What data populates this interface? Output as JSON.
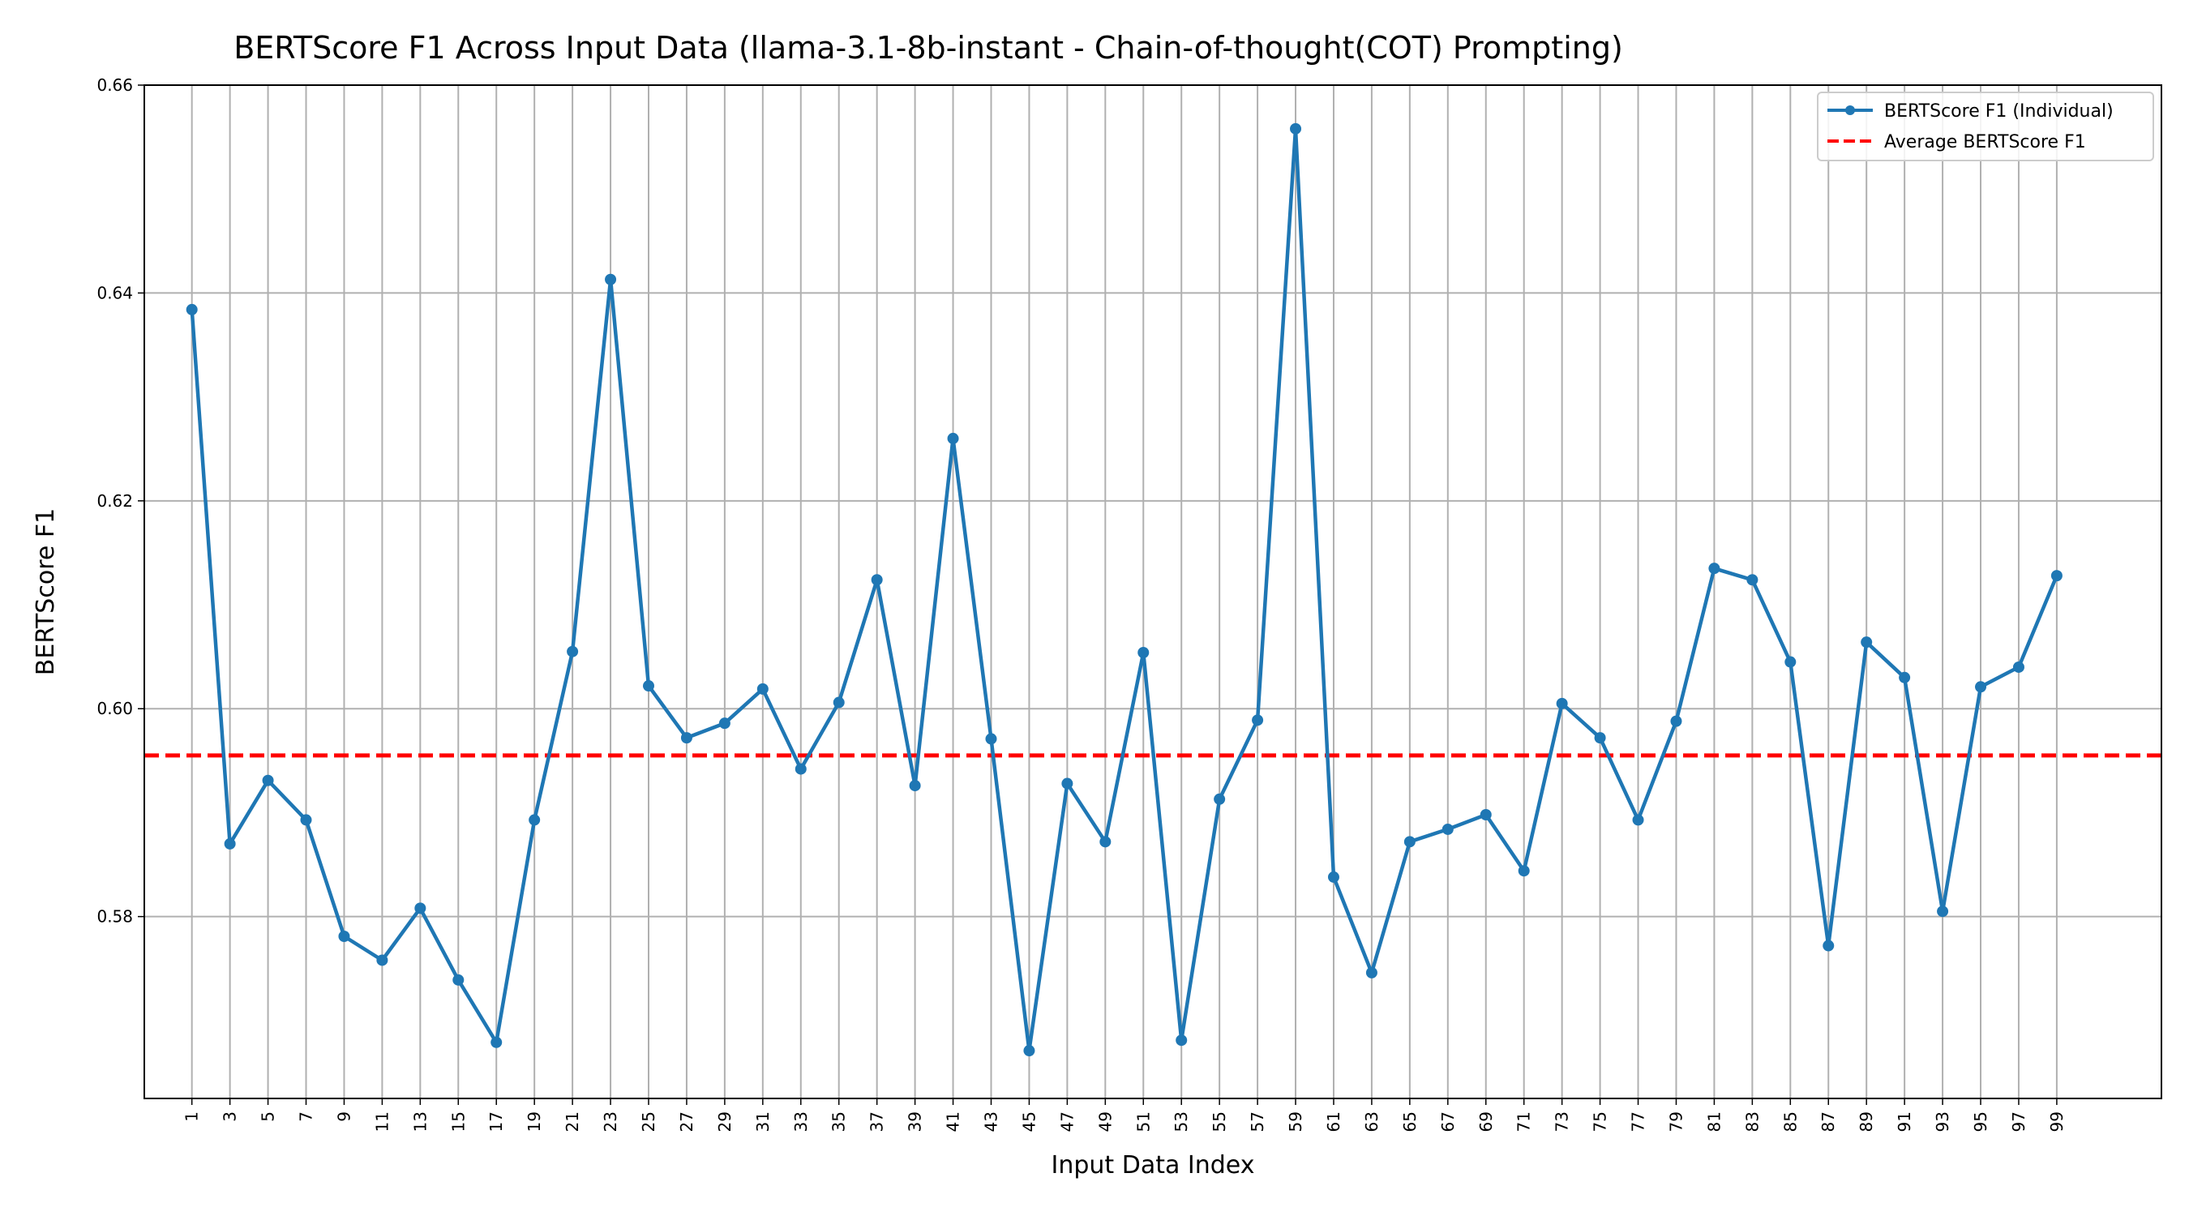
{
  "chart_data": {
    "type": "line",
    "title": "BERTScore F1 Across Input Data (llama-3.1-8b-instant - Chain-of-thought(COT) Prompting)",
    "xlabel": "Input Data Index",
    "ylabel": "BERTScore F1",
    "xlim": [
      -1.5,
      104.5
    ],
    "ylim": [
      0.5625,
      0.66
    ],
    "x_ticks": [
      1,
      3,
      5,
      7,
      9,
      11,
      13,
      15,
      17,
      19,
      21,
      23,
      25,
      27,
      29,
      31,
      33,
      35,
      37,
      39,
      41,
      43,
      45,
      47,
      49,
      51,
      53,
      55,
      57,
      59,
      61,
      63,
      65,
      67,
      69,
      71,
      73,
      75,
      77,
      79,
      81,
      83,
      85,
      87,
      89,
      91,
      93,
      95,
      97,
      99
    ],
    "y_ticks": [
      0.58,
      0.6,
      0.62,
      0.64,
      0.66
    ],
    "y_tick_labels": [
      "0.58",
      "0.60",
      "0.62",
      "0.64",
      "0.66"
    ],
    "grid": true,
    "legend_position": "top-right",
    "series": [
      {
        "name": "BERTScore F1 (Individual)",
        "color": "#1f77b4",
        "style": "solid-with-markers",
        "x": [
          1,
          3,
          5,
          7,
          9,
          11,
          13,
          15,
          17,
          19,
          21,
          23,
          25,
          27,
          29,
          31,
          33,
          35,
          37,
          39,
          41,
          43,
          45,
          47,
          49,
          51,
          53,
          55,
          57,
          59,
          61,
          63,
          65,
          67,
          69,
          71,
          73,
          75,
          77,
          79,
          81,
          83,
          85,
          87,
          89,
          91,
          93,
          95,
          97,
          99
        ],
        "values": [
          0.6384,
          0.587,
          0.5931,
          0.5893,
          0.5781,
          0.5758,
          0.5808,
          0.5739,
          0.5679,
          0.5893,
          0.6055,
          0.6413,
          0.6022,
          0.5972,
          0.5986,
          0.6019,
          0.5942,
          0.6006,
          0.6124,
          0.5926,
          0.626,
          0.5971,
          0.5671,
          0.5928,
          0.5872,
          0.6054,
          0.5681,
          0.5913,
          0.5989,
          0.6558,
          0.5838,
          0.5746,
          0.5872,
          0.5884,
          0.5898,
          0.5844,
          0.6005,
          0.5972,
          0.5893,
          0.5988,
          0.6135,
          0.6124,
          0.6045,
          0.5772,
          0.6064,
          0.603,
          0.5805,
          0.6021,
          0.604,
          0.6128
        ]
      },
      {
        "name": "Average BERTScore F1",
        "color": "#ff0000",
        "style": "dashed",
        "value": 0.5955
      }
    ]
  }
}
